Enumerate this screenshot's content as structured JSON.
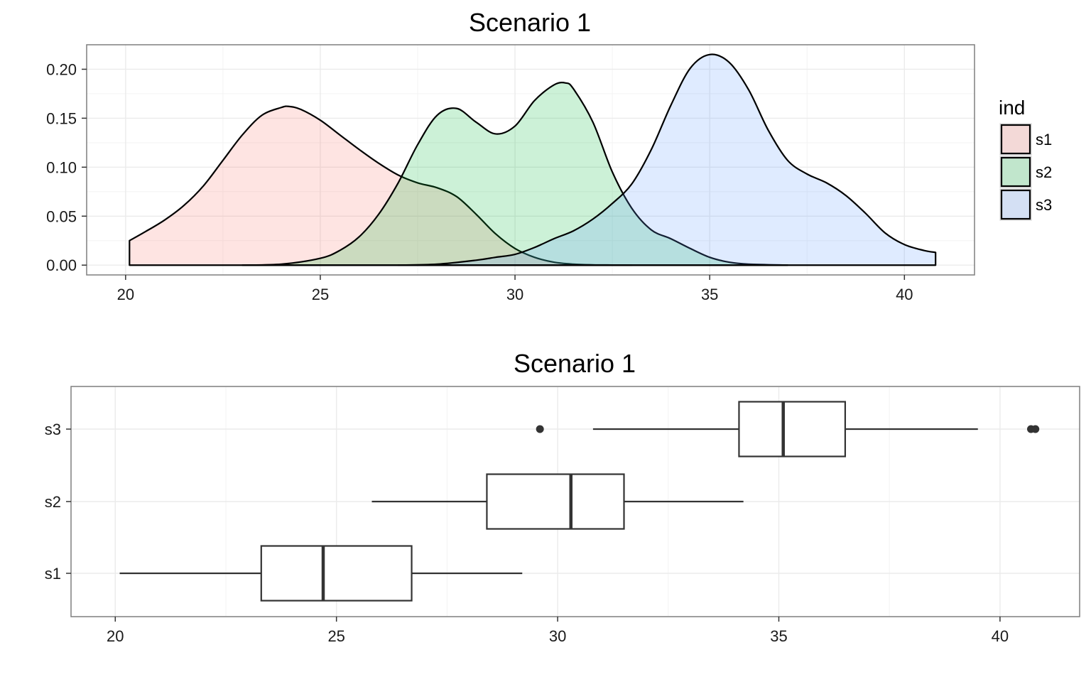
{
  "chart_data": [
    {
      "type": "area",
      "subtype": "density",
      "title": "Scenario 1",
      "xlabel": "",
      "ylabel": "",
      "xlim": [
        20,
        40
      ],
      "ylim": [
        0,
        0.2
      ],
      "x_ticks": [
        20,
        25,
        30,
        35,
        40
      ],
      "y_ticks": [
        "0.00",
        "0.05",
        "0.10",
        "0.15",
        "0.20"
      ],
      "grid": true,
      "legend": {
        "title": "ind",
        "position": "right",
        "entries": [
          {
            "label": "s1",
            "color": "#F8766D"
          },
          {
            "label": "s2",
            "color": "#00BA38"
          },
          {
            "label": "s3",
            "color": "#619CFF"
          }
        ]
      },
      "series": [
        {
          "name": "s1",
          "x": [
            20.1,
            20.5,
            21,
            21.5,
            22,
            22.5,
            23,
            23.5,
            24,
            24.2,
            24.5,
            25,
            25.5,
            26,
            26.5,
            27,
            27.5,
            28,
            28.5,
            29,
            29.5,
            30,
            30.5,
            31,
            31.5,
            32,
            32.5,
            33
          ],
          "values": [
            0.025,
            0.034,
            0.046,
            0.061,
            0.081,
            0.107,
            0.133,
            0.153,
            0.161,
            0.162,
            0.159,
            0.148,
            0.133,
            0.118,
            0.104,
            0.092,
            0.084,
            0.079,
            0.07,
            0.052,
            0.032,
            0.017,
            0.008,
            0.003,
            0.001,
            0.0003,
            0.0001,
            0.0
          ]
        },
        {
          "name": "s2",
          "x": [
            23,
            24,
            25,
            25.5,
            26,
            26.5,
            27,
            27.5,
            28,
            28.5,
            29,
            29.5,
            30,
            30.5,
            31,
            31.3,
            31.5,
            32,
            32.5,
            33,
            33.5,
            34,
            34.5,
            35,
            35.5,
            36,
            37
          ],
          "values": [
            0.0,
            0.001,
            0.007,
            0.015,
            0.029,
            0.052,
            0.084,
            0.123,
            0.153,
            0.16,
            0.146,
            0.134,
            0.142,
            0.168,
            0.184,
            0.186,
            0.18,
            0.146,
            0.095,
            0.058,
            0.036,
            0.027,
            0.017,
            0.008,
            0.003,
            0.001,
            0.0
          ]
        },
        {
          "name": "s3",
          "x": [
            27,
            28,
            29,
            29.5,
            30,
            30.5,
            31,
            31.5,
            32,
            32.5,
            33,
            33.5,
            34,
            34.5,
            35,
            35.5,
            36,
            36.5,
            37,
            37.5,
            38,
            38.5,
            39,
            39.5,
            40,
            40.5,
            40.8
          ],
          "values": [
            0.0,
            0.001,
            0.005,
            0.008,
            0.011,
            0.018,
            0.027,
            0.035,
            0.047,
            0.063,
            0.083,
            0.118,
            0.163,
            0.201,
            0.215,
            0.207,
            0.179,
            0.138,
            0.107,
            0.093,
            0.084,
            0.071,
            0.053,
            0.033,
            0.021,
            0.015,
            0.013
          ]
        }
      ]
    },
    {
      "type": "box",
      "orientation": "horizontal",
      "title": "Scenario 1",
      "xlabel": "",
      "ylabel": "",
      "xlim": [
        20,
        40
      ],
      "x_ticks": [
        20,
        25,
        30,
        35,
        40
      ],
      "categories": [
        "s1",
        "s2",
        "s3"
      ],
      "grid": true,
      "boxes": [
        {
          "name": "s1",
          "whisker_low": 20.1,
          "q1": 23.3,
          "median": 24.7,
          "q3": 26.7,
          "whisker_high": 29.2,
          "outliers": []
        },
        {
          "name": "s2",
          "whisker_low": 25.8,
          "q1": 28.4,
          "median": 30.3,
          "q3": 31.5,
          "whisker_high": 34.2,
          "outliers": []
        },
        {
          "name": "s3",
          "whisker_low": 30.8,
          "q1": 34.1,
          "median": 35.1,
          "q3": 36.5,
          "whisker_high": 39.5,
          "outliers": [
            29.6,
            40.7,
            40.8
          ]
        }
      ]
    }
  ],
  "style": {
    "fill_alpha": 0.2,
    "line_color": "#000000",
    "box_line_color": "#333333",
    "grid_color": "#ebebeb",
    "panel_border": "#7f7f7f"
  }
}
